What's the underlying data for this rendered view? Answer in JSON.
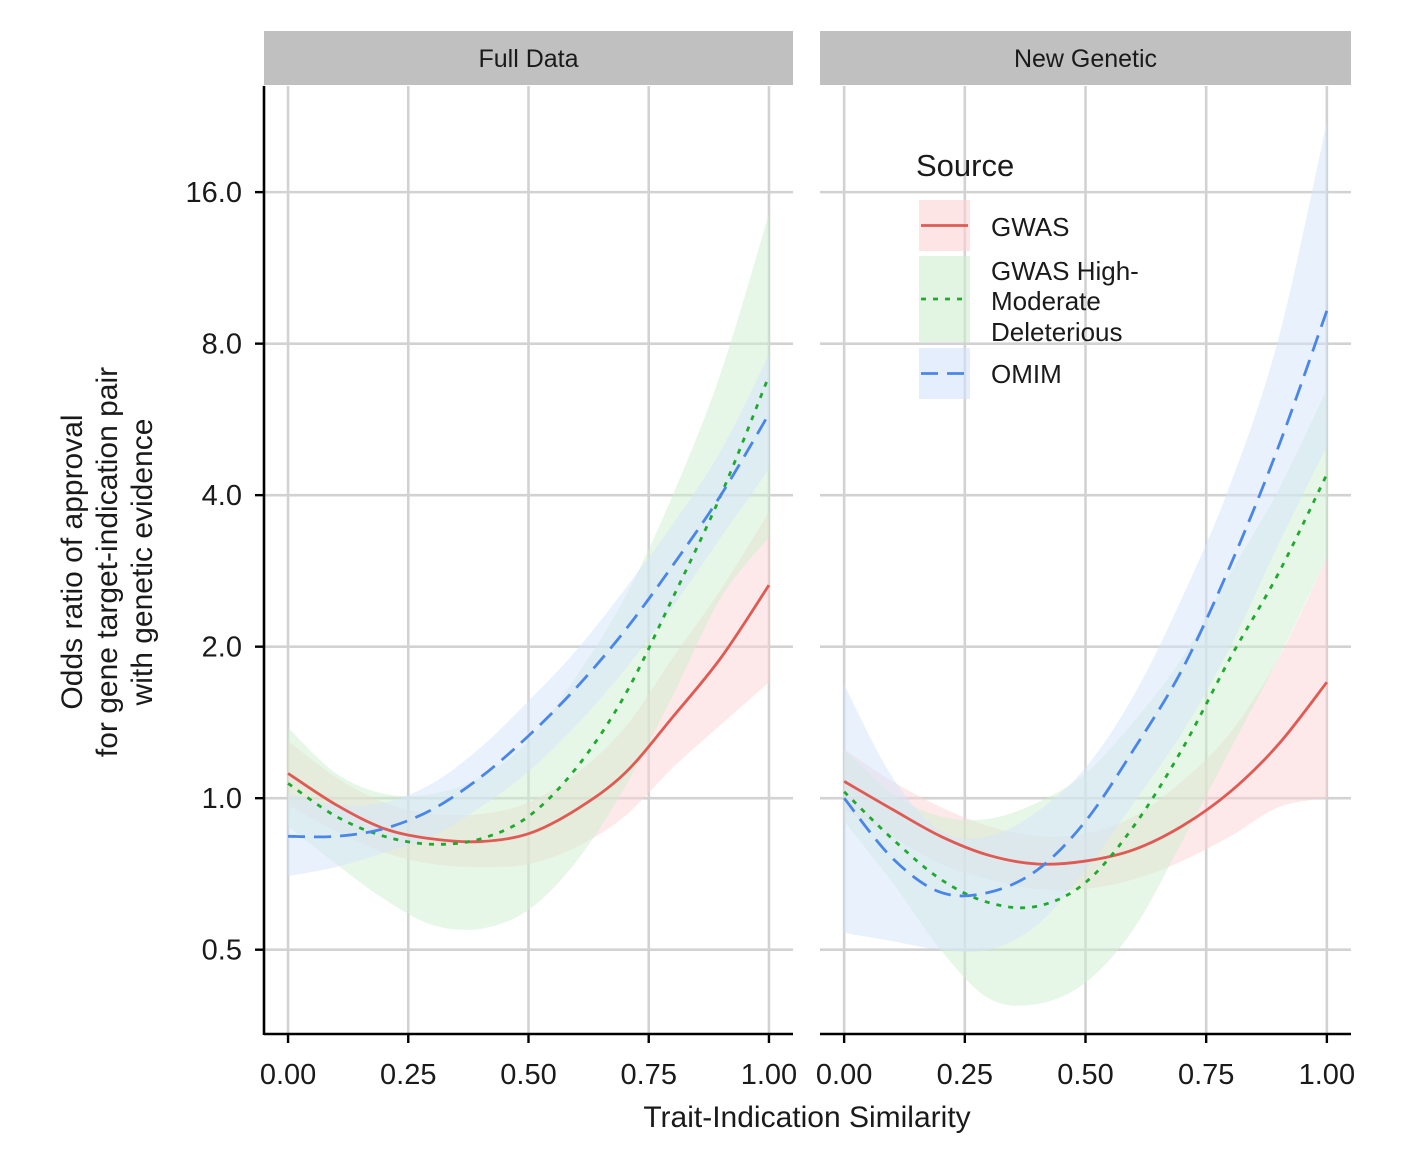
{
  "chart_data": {
    "type": "line",
    "xlabel": "Trait-Indication Similarity",
    "ylabel_lines": [
      "Odds ratio of approval",
      "for gene target-indication pair",
      "with genetic evidence"
    ],
    "y_scale": "log2",
    "ylim": [
      0.34,
      26
    ],
    "y_ticks": [
      0.5,
      1.0,
      2.0,
      4.0,
      8.0,
      16.0
    ],
    "y_tick_labels": [
      "0.5",
      "1.0",
      "2.0",
      "4.0",
      "8.0",
      "16.0"
    ],
    "xlim": [
      -0.05,
      1.05
    ],
    "x_ticks": [
      0,
      0.25,
      0.5,
      0.75,
      1.0
    ],
    "x_tick_labels": [
      "0.00",
      "0.25",
      "0.50",
      "0.75",
      "1.00"
    ],
    "grid": true,
    "legend": {
      "title": "Source",
      "placement": "inside top-right panel",
      "entries": [
        {
          "lines": [
            "GWAS"
          ],
          "series": "GWAS"
        },
        {
          "lines": [
            "GWAS High-",
            "Moderate",
            "Deleterious"
          ],
          "series": "GWAS High-Moderate Deleterious"
        },
        {
          "lines": [
            "OMIM"
          ],
          "series": "OMIM"
        }
      ]
    },
    "series_styles": [
      {
        "name": "GWAS",
        "color": "#E05A53",
        "fill": "#FBD3D3",
        "dash": ""
      },
      {
        "name": "GWAS High-Moderate Deleterious",
        "color": "#1EAA2E",
        "fill": "#CDEFCF",
        "dash": "5 7"
      },
      {
        "name": "OMIM",
        "color": "#4A86E8",
        "fill": "#D4E3FB",
        "dash": "17 9"
      }
    ],
    "panels": [
      {
        "title": "Full Data",
        "series": [
          {
            "name": "GWAS",
            "x": [
              0,
              0.1,
              0.2,
              0.3,
              0.4,
              0.5,
              0.6,
              0.7,
              0.8,
              0.9,
              1.0
            ],
            "y": [
              1.12,
              0.97,
              0.87,
              0.83,
              0.82,
              0.85,
              0.95,
              1.12,
              1.45,
              1.9,
              2.65
            ],
            "lower": [
              0.97,
              0.86,
              0.78,
              0.74,
              0.73,
              0.74,
              0.8,
              0.92,
              1.15,
              1.4,
              1.7
            ],
            "upper": [
              1.3,
              1.1,
              0.98,
              0.93,
              0.93,
              0.98,
              1.12,
              1.38,
              1.9,
              2.6,
              3.7
            ]
          },
          {
            "name": "GWAS High-Moderate Deleterious",
            "x": [
              0,
              0.1,
              0.2,
              0.3,
              0.4,
              0.5,
              0.6,
              0.7,
              0.8,
              0.9,
              1.0
            ],
            "y": [
              1.07,
              0.92,
              0.84,
              0.81,
              0.83,
              0.92,
              1.15,
              1.6,
              2.5,
              4.0,
              6.9
            ],
            "lower": [
              0.88,
              0.74,
              0.63,
              0.56,
              0.55,
              0.6,
              0.75,
              1.05,
              1.6,
              2.5,
              3.3
            ],
            "upper": [
              1.38,
              1.12,
              1.02,
              1.02,
              1.1,
              1.3,
              1.75,
              2.5,
              4.0,
              7.0,
              14.5
            ]
          },
          {
            "name": "OMIM",
            "x": [
              0,
              0.1,
              0.2,
              0.3,
              0.4,
              0.5,
              0.6,
              0.7,
              0.8,
              0.9,
              1.0
            ],
            "y": [
              0.84,
              0.84,
              0.87,
              0.95,
              1.1,
              1.33,
              1.66,
              2.15,
              2.9,
              4.0,
              5.8
            ],
            "lower": [
              0.7,
              0.73,
              0.78,
              0.84,
              0.96,
              1.13,
              1.4,
              1.8,
              2.4,
              3.3,
              4.5
            ],
            "upper": [
              1.02,
              0.97,
              0.98,
              1.07,
              1.26,
              1.56,
              1.97,
              2.6,
              3.5,
              4.9,
              7.6
            ]
          }
        ]
      },
      {
        "title": "New Genetic",
        "series": [
          {
            "name": "GWAS",
            "x": [
              0,
              0.1,
              0.2,
              0.3,
              0.4,
              0.5,
              0.6,
              0.7,
              0.8,
              0.9,
              1.0
            ],
            "y": [
              1.08,
              0.95,
              0.84,
              0.77,
              0.74,
              0.75,
              0.79,
              0.88,
              1.03,
              1.28,
              1.7
            ],
            "lower": [
              0.95,
              0.84,
              0.74,
              0.69,
              0.66,
              0.66,
              0.69,
              0.75,
              0.84,
              0.96,
              1.0
            ],
            "upper": [
              1.25,
              1.08,
              0.96,
              0.88,
              0.84,
              0.85,
              0.92,
              1.08,
              1.35,
              1.9,
              3.0
            ]
          },
          {
            "name": "GWAS High-Moderate Deleterious",
            "x": [
              0,
              0.1,
              0.2,
              0.3,
              0.4,
              0.5,
              0.6,
              0.7,
              0.8,
              0.9,
              1.0
            ],
            "y": [
              1.03,
              0.83,
              0.69,
              0.62,
              0.61,
              0.68,
              0.88,
              1.25,
              1.9,
              2.8,
              4.4
            ],
            "lower": [
              0.9,
              0.68,
              0.5,
              0.4,
              0.39,
              0.43,
              0.55,
              0.82,
              1.25,
              1.9,
              3.0
            ],
            "upper": [
              1.25,
              1.02,
              0.92,
              0.91,
              0.98,
              1.12,
              1.42,
              1.9,
              2.8,
              4.1,
              6.5
            ]
          },
          {
            "name": "OMIM",
            "x": [
              0,
              0.1,
              0.2,
              0.3,
              0.4,
              0.5,
              0.6,
              0.7,
              0.8,
              0.9,
              1.0
            ],
            "y": [
              1.0,
              0.76,
              0.65,
              0.65,
              0.72,
              0.9,
              1.25,
              1.8,
              2.9,
              5.0,
              9.3
            ],
            "lower": [
              0.54,
              0.52,
              0.5,
              0.5,
              0.56,
              0.72,
              0.98,
              1.35,
              2.0,
              3.2,
              5.0
            ],
            "upper": [
              1.68,
              1.1,
              0.86,
              0.84,
              0.94,
              1.15,
              1.6,
              2.5,
              4.2,
              8.2,
              22.0
            ]
          }
        ]
      }
    ]
  }
}
